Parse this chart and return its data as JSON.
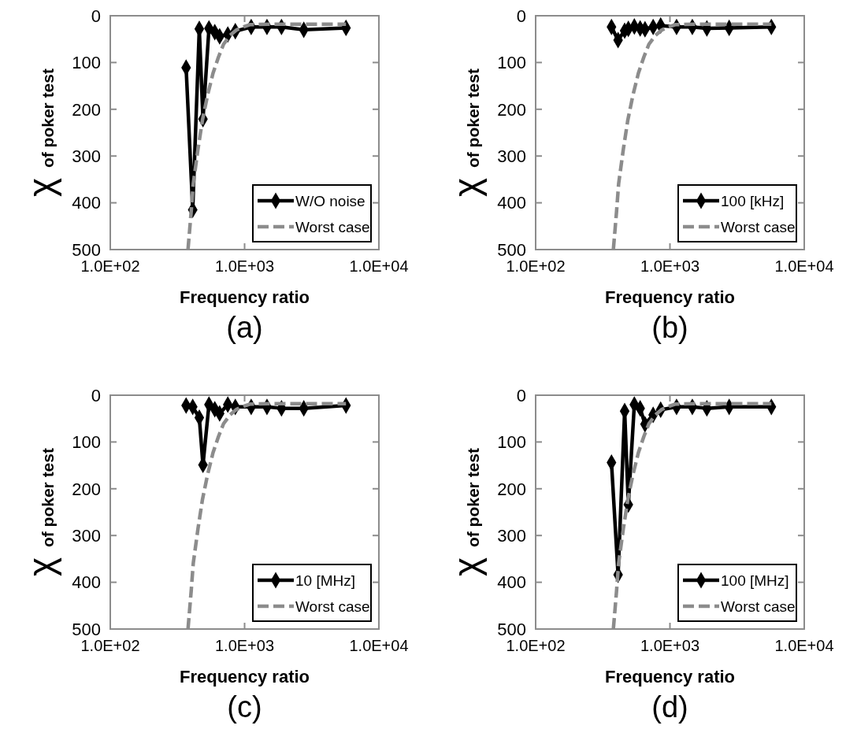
{
  "chart_data": [
    {
      "type": "line",
      "xlabel": "Frequency ratio",
      "ylabel": "χ of poker test",
      "annotations": [
        "(a)"
      ],
      "log": "x",
      "xlim": [
        100,
        10000
      ],
      "xticks": [
        {
          "value": 100,
          "label": "1.0E+02"
        },
        {
          "value": 1000,
          "label": "1.0E+03"
        },
        {
          "value": 10000,
          "label": "1.0E+04"
        }
      ],
      "ylim": [
        500,
        0
      ],
      "yticks": [
        0,
        100,
        200,
        300,
        400,
        500
      ],
      "grid": false,
      "legend": "bottom right",
      "series": [
        {
          "name": "W/O noise",
          "color": "#000000",
          "marker": "diamond",
          "line_style": "solid",
          "x": [
            367,
            411,
            460,
            490,
            543,
            600,
            652,
            750,
            853,
            1120,
            1468,
            1883,
            2760,
            5690
          ],
          "values": [
            111,
            415,
            28,
            221,
            27,
            35,
            44,
            40,
            33,
            24,
            24,
            24,
            30,
            26
          ]
        },
        {
          "name": "Worst case",
          "color": "#8c8c8c",
          "marker": "none",
          "line_style": "dashed",
          "x": [
            379,
            400,
            415,
            450,
            485,
            530,
            582,
            640,
            697,
            780,
            874,
            1000,
            1094,
            1500,
            2000,
            3000,
            5690
          ],
          "values": [
            500,
            420,
            359,
            285,
            224,
            170,
            123,
            88,
            61,
            42,
            30,
            23,
            19,
            18,
            18,
            18,
            18
          ]
        }
      ]
    },
    {
      "type": "line",
      "xlabel": "Frequency ratio",
      "ylabel": "χ of poker test",
      "annotations": [
        "(b)"
      ],
      "log": "x",
      "xlim": [
        100,
        10000
      ],
      "xticks": [
        {
          "value": 100,
          "label": "1.0E+02"
        },
        {
          "value": 1000,
          "label": "1.0E+03"
        },
        {
          "value": 10000,
          "label": "1.0E+04"
        }
      ],
      "ylim": [
        500,
        0
      ],
      "yticks": [
        0,
        100,
        200,
        300,
        400,
        500
      ],
      "grid": false,
      "legend": "bottom right",
      "series": [
        {
          "name": "100 [kHz]",
          "color": "#000000",
          "marker": "diamond",
          "line_style": "solid",
          "x": [
            367,
            411,
            460,
            490,
            543,
            600,
            652,
            750,
            853,
            1120,
            1468,
            1883,
            2760,
            5690
          ],
          "values": [
            24,
            52,
            32,
            28,
            23,
            27,
            29,
            24,
            21,
            24,
            24,
            27,
            26,
            24
          ]
        },
        {
          "name": "Worst case",
          "color": "#8c8c8c",
          "marker": "none",
          "line_style": "dashed",
          "x": [
            379,
            400,
            415,
            450,
            485,
            530,
            582,
            640,
            697,
            780,
            874,
            1000,
            1094,
            1500,
            2000,
            3000,
            5690
          ],
          "values": [
            500,
            420,
            359,
            285,
            224,
            170,
            123,
            88,
            61,
            42,
            30,
            23,
            19,
            18,
            18,
            18,
            18
          ]
        }
      ]
    },
    {
      "type": "line",
      "xlabel": "Frequency ratio",
      "ylabel": "χ of poker test",
      "annotations": [
        "(c)"
      ],
      "log": "x",
      "xlim": [
        100,
        10000
      ],
      "xticks": [
        {
          "value": 100,
          "label": "1.0E+02"
        },
        {
          "value": 1000,
          "label": "1.0E+03"
        },
        {
          "value": 10000,
          "label": "1.0E+04"
        }
      ],
      "ylim": [
        500,
        0
      ],
      "yticks": [
        0,
        100,
        200,
        300,
        400,
        500
      ],
      "grid": false,
      "legend": "bottom right",
      "series": [
        {
          "name": "10 [MHz]",
          "color": "#000000",
          "marker": "diamond",
          "line_style": "solid",
          "x": [
            367,
            411,
            460,
            490,
            543,
            600,
            652,
            750,
            853,
            1120,
            1468,
            1883,
            2760,
            5690
          ],
          "values": [
            22,
            25,
            48,
            149,
            20,
            30,
            39,
            20,
            25,
            25,
            25,
            28,
            28,
            22
          ]
        },
        {
          "name": "Worst case",
          "color": "#8c8c8c",
          "marker": "none",
          "line_style": "dashed",
          "x": [
            379,
            400,
            415,
            450,
            485,
            530,
            582,
            640,
            697,
            780,
            874,
            1000,
            1094,
            1500,
            2000,
            3000,
            5690
          ],
          "values": [
            500,
            420,
            359,
            285,
            224,
            170,
            123,
            88,
            61,
            42,
            30,
            23,
            19,
            18,
            18,
            18,
            18
          ]
        }
      ]
    },
    {
      "type": "line",
      "xlabel": "Frequency ratio",
      "ylabel": "χ of poker test",
      "annotations": [
        "(d)"
      ],
      "log": "x",
      "xlim": [
        100,
        10000
      ],
      "xticks": [
        {
          "value": 100,
          "label": "1.0E+02"
        },
        {
          "value": 1000,
          "label": "1.0E+03"
        },
        {
          "value": 10000,
          "label": "1.0E+04"
        }
      ],
      "ylim": [
        500,
        0
      ],
      "yticks": [
        0,
        100,
        200,
        300,
        400,
        500
      ],
      "grid": false,
      "legend": "bottom right",
      "series": [
        {
          "name": "100 [MHz]",
          "color": "#000000",
          "marker": "diamond",
          "line_style": "solid",
          "x": [
            367,
            411,
            460,
            490,
            543,
            600,
            652,
            750,
            853,
            1120,
            1468,
            1883,
            2760,
            5690
          ],
          "values": [
            144,
            384,
            34,
            234,
            20,
            28,
            62,
            42,
            31,
            25,
            25,
            28,
            25,
            25
          ]
        },
        {
          "name": "Worst case",
          "color": "#8c8c8c",
          "marker": "none",
          "line_style": "dashed",
          "x": [
            379,
            400,
            415,
            450,
            485,
            530,
            582,
            640,
            697,
            780,
            874,
            1000,
            1094,
            1500,
            2000,
            3000,
            5690
          ],
          "values": [
            500,
            420,
            359,
            285,
            224,
            170,
            123,
            88,
            61,
            42,
            30,
            23,
            19,
            18,
            18,
            18,
            18
          ]
        }
      ]
    }
  ]
}
